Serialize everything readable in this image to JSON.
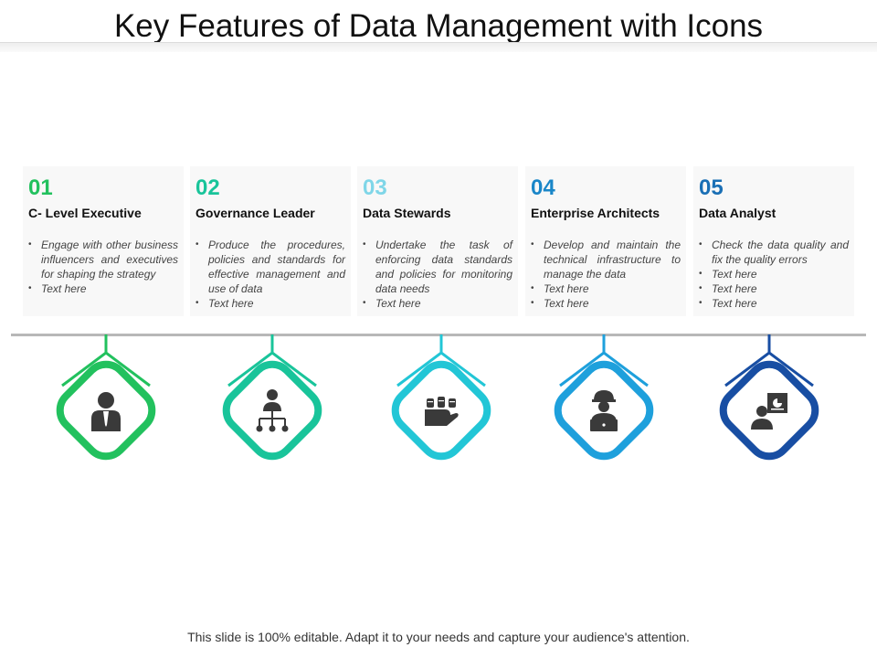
{
  "title": "Key Features of Data Management with Icons",
  "footer": "This slide is 100% editable. Adapt it to your needs and capture your audience's attention.",
  "features": [
    {
      "number": "01",
      "name": "C- Level Executive",
      "color": "#22c15e",
      "icon": "executive-icon",
      "bullets": [
        "Engage with other business influencers and executives for shaping the strategy",
        "Text here"
      ]
    },
    {
      "number": "02",
      "name": "Governance Leader",
      "color": "#19c49a",
      "icon": "org-chart-leader-icon",
      "bullets": [
        "Produce the procedures, policies and standards for effective management and use of data",
        "Text here"
      ]
    },
    {
      "number": "03",
      "name": "Data Stewards",
      "color": "#7fd6e8",
      "ring_color": "#22c6d6",
      "icon": "data-hand-icon",
      "bullets": [
        "Undertake the task of enforcing data standards and policies for monitoring data needs",
        "Text here"
      ]
    },
    {
      "number": "04",
      "name": "Enterprise Architects",
      "color": "#1a86c8",
      "ring_color": "#1ea0dc",
      "icon": "architect-laptop-icon",
      "bullets": [
        "Develop and maintain the technical infrastructure to manage the data",
        "Text here",
        "Text here"
      ]
    },
    {
      "number": "05",
      "name": "Data Analyst",
      "color": "#1a6fb5",
      "ring_color": "#184ea3",
      "icon": "analyst-presentation-icon",
      "bullets": [
        "Check the data quality and fix the quality errors",
        "Text here",
        "Text here",
        "Text here"
      ]
    }
  ]
}
